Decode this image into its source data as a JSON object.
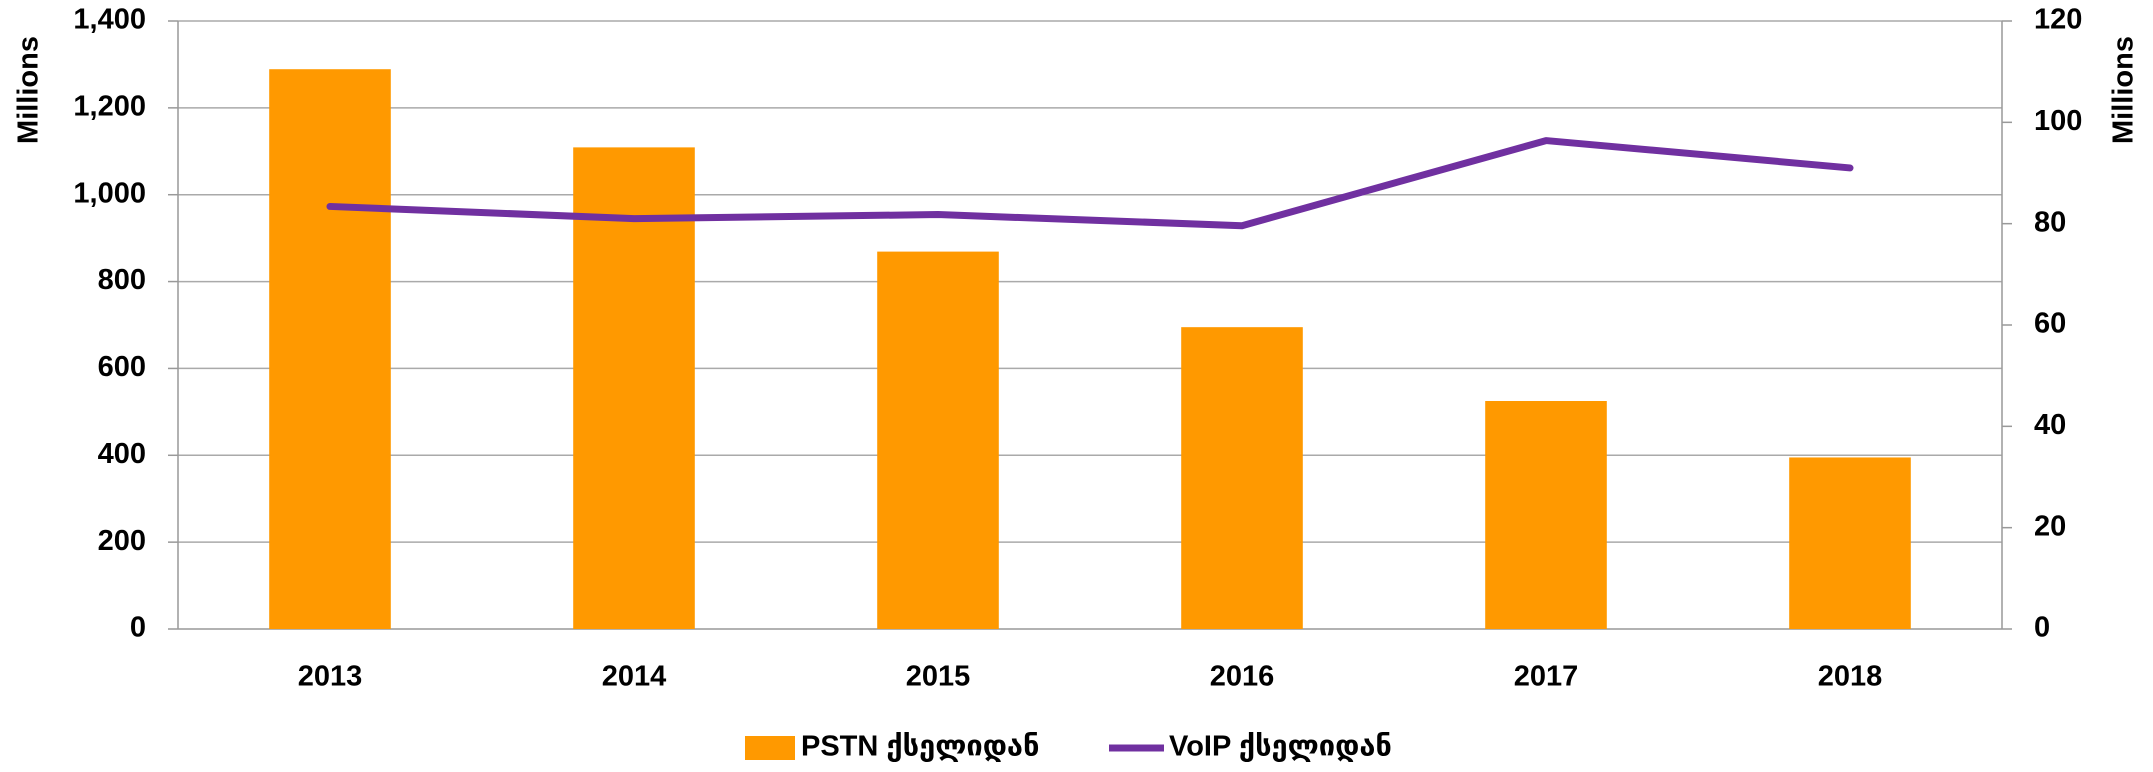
{
  "chart_data": {
    "type": "bar_line",
    "categories": [
      "2013",
      "2014",
      "2015",
      "2016",
      "2017",
      "2018"
    ],
    "series": [
      {
        "name": "PSTN ქსელიდან",
        "type": "bar",
        "color": "#ff9900",
        "axis": "y",
        "values": [
          1289,
          1109,
          869,
          695,
          525,
          395
        ]
      },
      {
        "name": "VoIP ქსელიდან",
        "type": "line",
        "color": "#7030a0",
        "axis": "y2",
        "values": [
          83.4,
          81.0,
          81.8,
          79.6,
          96.4,
          91.0
        ]
      }
    ],
    "ylabel": "Millions",
    "y2label": "Millions",
    "ylim": [
      0,
      1400
    ],
    "yticks": [
      0,
      200,
      400,
      600,
      800,
      {
        "value": 1000,
        "label": "1,000"
      },
      {
        "value": 1200,
        "label": "1,200"
      },
      {
        "value": 1400,
        "label": "1,400"
      }
    ],
    "y2lim": [
      0,
      120
    ],
    "y2ticks": [
      0,
      20,
      40,
      60,
      80,
      100,
      120
    ],
    "grid": true,
    "legend": "bottom"
  }
}
